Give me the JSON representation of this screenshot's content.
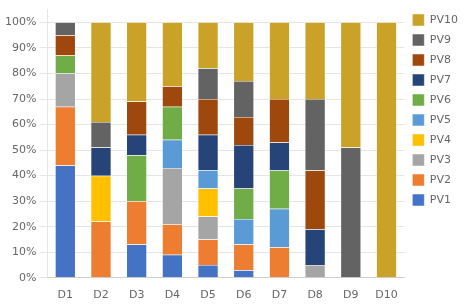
{
  "chart_data": {
    "type": "bar",
    "stacked": true,
    "grid": true,
    "legend": "right",
    "categories": [
      "D1",
      "D2",
      "D3",
      "D4",
      "D5",
      "D6",
      "D7",
      "D8",
      "D9",
      "D10"
    ],
    "series": [
      {
        "name": "PV1",
        "color": "#4472C4",
        "values": [
          44,
          0,
          13,
          9,
          5,
          3,
          0,
          0,
          0,
          0
        ]
      },
      {
        "name": "PV2",
        "color": "#ED7D31",
        "values": [
          23,
          22,
          17,
          12,
          10,
          10,
          12,
          0,
          0,
          0
        ]
      },
      {
        "name": "PV3",
        "color": "#A5A5A5",
        "values": [
          13,
          0,
          0,
          22,
          9,
          0,
          0,
          5,
          0,
          0
        ]
      },
      {
        "name": "PV4",
        "color": "#FFC000",
        "values": [
          0,
          18,
          0,
          0,
          11,
          0,
          0,
          0,
          0,
          0
        ]
      },
      {
        "name": "PV5",
        "color": "#5B9BD5",
        "values": [
          0,
          0,
          0,
          11,
          7,
          10,
          15,
          0,
          0,
          0
        ]
      },
      {
        "name": "PV6",
        "color": "#70AD47",
        "values": [
          7,
          0,
          18,
          13,
          0,
          12,
          15,
          0,
          0,
          0
        ]
      },
      {
        "name": "PV7",
        "color": "#264478",
        "values": [
          0,
          11,
          8,
          0,
          14,
          17,
          11,
          14,
          0,
          0
        ]
      },
      {
        "name": "PV8",
        "color": "#9E480E",
        "values": [
          8,
          0,
          13,
          8,
          14,
          11,
          17,
          23,
          0,
          0
        ]
      },
      {
        "name": "PV9",
        "color": "#636363",
        "values": [
          5,
          10,
          0,
          0,
          12,
          14,
          0,
          28,
          51,
          0
        ]
      },
      {
        "name": "PV10",
        "color": "#C9A227",
        "values": [
          0,
          39,
          31,
          25,
          18,
          23,
          30,
          30,
          49,
          100
        ]
      }
    ],
    "ylim": [
      0,
      105
    ],
    "yticks": [
      {
        "value": 0,
        "label": "0%"
      },
      {
        "value": 10,
        "label": "10%"
      },
      {
        "value": 20,
        "label": "20%"
      },
      {
        "value": 30,
        "label": "30%"
      },
      {
        "value": 40,
        "label": "40%"
      },
      {
        "value": 50,
        "label": "50%"
      },
      {
        "value": 60,
        "label": "60%"
      },
      {
        "value": 70,
        "label": "70%"
      },
      {
        "value": 80,
        "label": "80%"
      },
      {
        "value": 90,
        "label": "90%"
      },
      {
        "value": 100,
        "label": "100%"
      }
    ]
  }
}
